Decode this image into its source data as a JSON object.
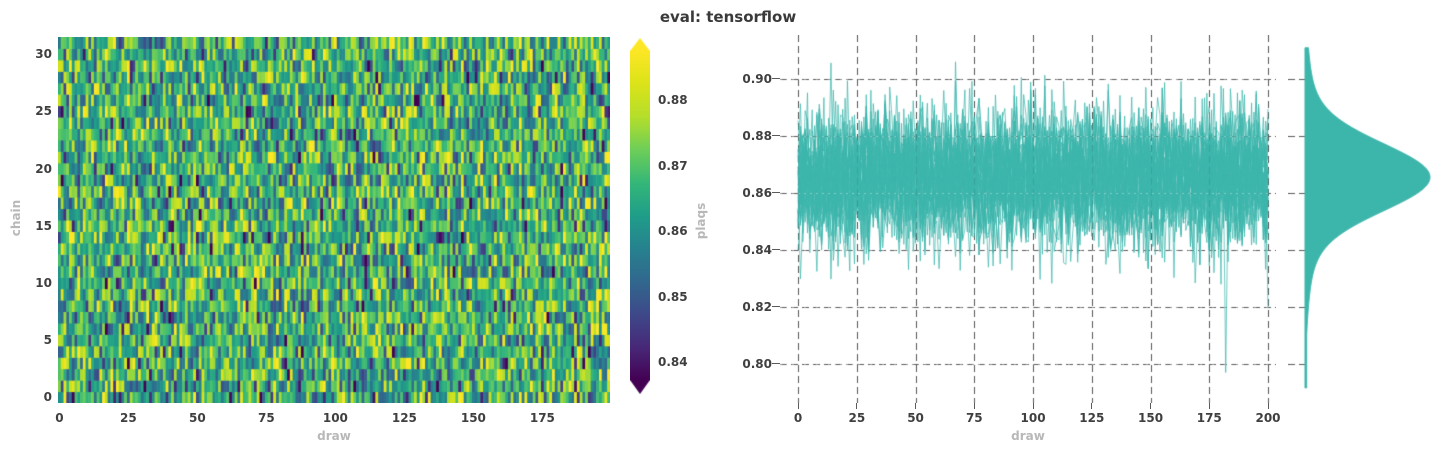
{
  "title": "eval: tensorflow",
  "colors": {
    "teal": "#3cb5ab",
    "grid_line": "#5a5a5a",
    "tick_label": "#3f3f3f",
    "axis_label": "#b8b8b8",
    "title_text": "#3a3a3a",
    "background": "#ffffff",
    "viridis_stops": [
      [
        0.0,
        "#440154"
      ],
      [
        0.1,
        "#482878"
      ],
      [
        0.2,
        "#3e4989"
      ],
      [
        0.3,
        "#31688e"
      ],
      [
        0.4,
        "#26828e"
      ],
      [
        0.5,
        "#1f9e89"
      ],
      [
        0.6,
        "#35b779"
      ],
      [
        0.7,
        "#6ece58"
      ],
      [
        0.8,
        "#b5de2b"
      ],
      [
        0.9,
        "#dce319"
      ],
      [
        1.0,
        "#fde725"
      ]
    ]
  },
  "chart_data": [
    {
      "id": "plaqs_heatmap",
      "type": "heatmap",
      "xlabel": "draw",
      "ylabel": "chain",
      "x_tick_labels": [
        "0",
        "25",
        "50",
        "75",
        "100",
        "125",
        "150",
        "175"
      ],
      "y_tick_labels": [
        "0",
        "5",
        "10",
        "15",
        "20",
        "25",
        "30"
      ],
      "n_draws": 200,
      "n_chains": 32,
      "x_range": [
        0,
        200
      ],
      "y_range": [
        0,
        31
      ],
      "value_mean": 0.8655,
      "value_std": 0.0115,
      "colormap": "viridis",
      "color_vmin": 0.8373,
      "color_vmax": 0.8875,
      "grid": false,
      "seed": 20240817,
      "colorbar": {
        "label": "plaqs",
        "tick_labels": [
          "0.88",
          "0.87",
          "0.86",
          "0.85",
          "0.84"
        ],
        "extend": "both"
      }
    },
    {
      "id": "plaqs_trace",
      "type": "line",
      "xlabel": "draw",
      "ylabel": "",
      "x_tick_labels": [
        "0",
        "25",
        "50",
        "75",
        "100",
        "125",
        "150",
        "175",
        "200"
      ],
      "y_tick_labels": [
        "0.80",
        "0.82",
        "0.84",
        "0.86",
        "0.88",
        "0.90"
      ],
      "xlim": [
        -7.7,
        203.4
      ],
      "ylim": [
        0.7863,
        0.9154
      ],
      "n_chains": 32,
      "n_draws": 201,
      "mean": 0.8655,
      "std": 0.0115,
      "line_color": "#3cb5ab",
      "grid": true,
      "grid_style": "dashed",
      "outliers": [
        {
          "chain": 0,
          "draw": 182,
          "value": 0.797
        },
        {
          "chain": 1,
          "draw": 67,
          "value": 0.906
        }
      ],
      "seed": 777
    },
    {
      "id": "plaqs_density",
      "type": "area",
      "orientation": "horizontal",
      "peak": 0.8655,
      "std": 0.0115,
      "value_range": [
        0.7916,
        0.9109
      ],
      "fill_color": "#3cb5ab",
      "legend": "none"
    }
  ]
}
